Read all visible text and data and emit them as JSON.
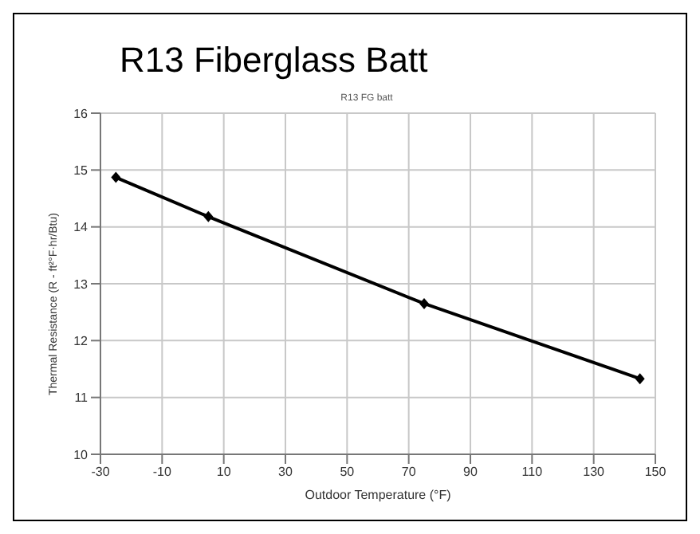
{
  "chart_data": {
    "type": "line",
    "title": "R13 Fiberglass Batt",
    "subtitle": "R13 FG batt",
    "xlabel": "Outdoor Temperature (°F)",
    "ylabel": "Thermal Resistance (R - ft²°F·hr/Btu)",
    "x": [
      -25,
      5,
      75,
      145
    ],
    "series": [
      {
        "color": "#000000",
        "values": [
          14.87,
          14.18,
          12.65,
          11.33
        ]
      }
    ],
    "xlim": [
      -30,
      150
    ],
    "xticks": [
      -30,
      -10,
      10,
      30,
      50,
      70,
      90,
      110,
      130,
      150
    ],
    "ylim": [
      10,
      16
    ],
    "yticks": [
      10,
      11,
      12,
      13,
      14,
      15,
      16
    ],
    "grid": true,
    "marker": "diamond",
    "line_style": "solid"
  }
}
